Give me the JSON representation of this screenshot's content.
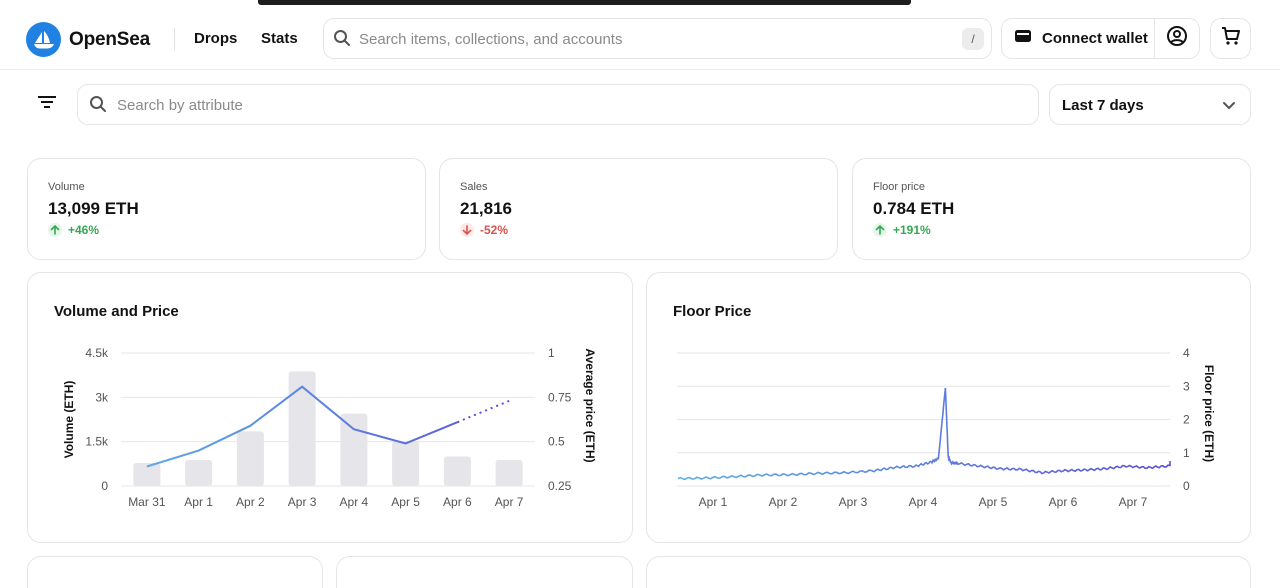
{
  "header": {
    "brand": "OpenSea",
    "nav": {
      "drops": "Drops",
      "stats": "Stats"
    },
    "search_placeholder": "Search items, collections, and accounts",
    "search_shortcut": "/",
    "connect_wallet": "Connect wallet"
  },
  "filters": {
    "attribute_placeholder": "Search by attribute",
    "time_range": "Last 7 days"
  },
  "stats": [
    {
      "label": "Volume",
      "value": "13,099 ETH",
      "change": "+46%",
      "direction": "up"
    },
    {
      "label": "Sales",
      "value": "21,816",
      "change": "-52%",
      "direction": "down"
    },
    {
      "label": "Floor price",
      "value": "0.784 ETH",
      "change": "+191%",
      "direction": "up"
    }
  ],
  "colors": {
    "accent": "#2081e2",
    "up": "#34a853",
    "down": "#d9534f",
    "bar": "#e5e5ea",
    "line_start": "#5fb0e6",
    "line_end": "#5b50d6"
  },
  "charts": {
    "volume_price_title": "Volume and Price",
    "floor_price_title": "Floor Price"
  },
  "chart_data": [
    {
      "type": "bar",
      "title": "Volume and Price",
      "categories": [
        "Mar 31",
        "Apr 1",
        "Apr 2",
        "Apr 3",
        "Apr 4",
        "Apr 5",
        "Apr 6",
        "Apr 7"
      ],
      "xlabel": "",
      "ylabel": "Volume (ETH)",
      "y2label": "Average price (ETH)",
      "yticks": [
        "0",
        "1.5k",
        "3k",
        "4.5k"
      ],
      "y2ticks": [
        "0.25",
        "0.5",
        "0.75",
        "1"
      ],
      "ylim": [
        0,
        4500
      ],
      "y2lim": [
        0.25,
        1
      ],
      "series": [
        {
          "name": "Volume (ETH)",
          "values": [
            780,
            880,
            1850,
            3880,
            2450,
            1520,
            1000,
            880
          ]
        },
        {
          "name": "Average price (ETH)",
          "type": "line",
          "values": [
            0.36,
            0.45,
            0.59,
            0.81,
            0.57,
            0.49,
            0.61,
            0.73
          ],
          "projected_from_index": 6
        }
      ],
      "grid": true
    },
    {
      "type": "line",
      "title": "Floor Price",
      "categories": [
        "Apr 1",
        "Apr 2",
        "Apr 3",
        "Apr 4",
        "Apr 5",
        "Apr 6",
        "Apr 7"
      ],
      "ylabel": "Floor price (ETH)",
      "yticks": [
        "0",
        "1",
        "2",
        "3",
        "4"
      ],
      "ylim": [
        0,
        4
      ],
      "x": [
        0,
        0.4,
        0.8,
        1.2,
        1.6,
        2.0,
        2.4,
        2.8,
        3.1,
        3.4,
        3.62,
        3.72,
        3.82,
        3.86,
        3.9,
        4.0,
        4.3,
        4.6,
        4.9,
        5.2,
        5.5,
        5.8,
        6.1,
        6.4,
        6.7,
        7.0,
        7.3
      ],
      "values": [
        0.22,
        0.24,
        0.28,
        0.33,
        0.34,
        0.38,
        0.4,
        0.46,
        0.56,
        0.6,
        0.72,
        0.82,
        2.95,
        0.88,
        0.7,
        0.68,
        0.6,
        0.52,
        0.5,
        0.4,
        0.46,
        0.48,
        0.52,
        0.6,
        0.55,
        0.6,
        0.74
      ],
      "grid": true
    }
  ]
}
